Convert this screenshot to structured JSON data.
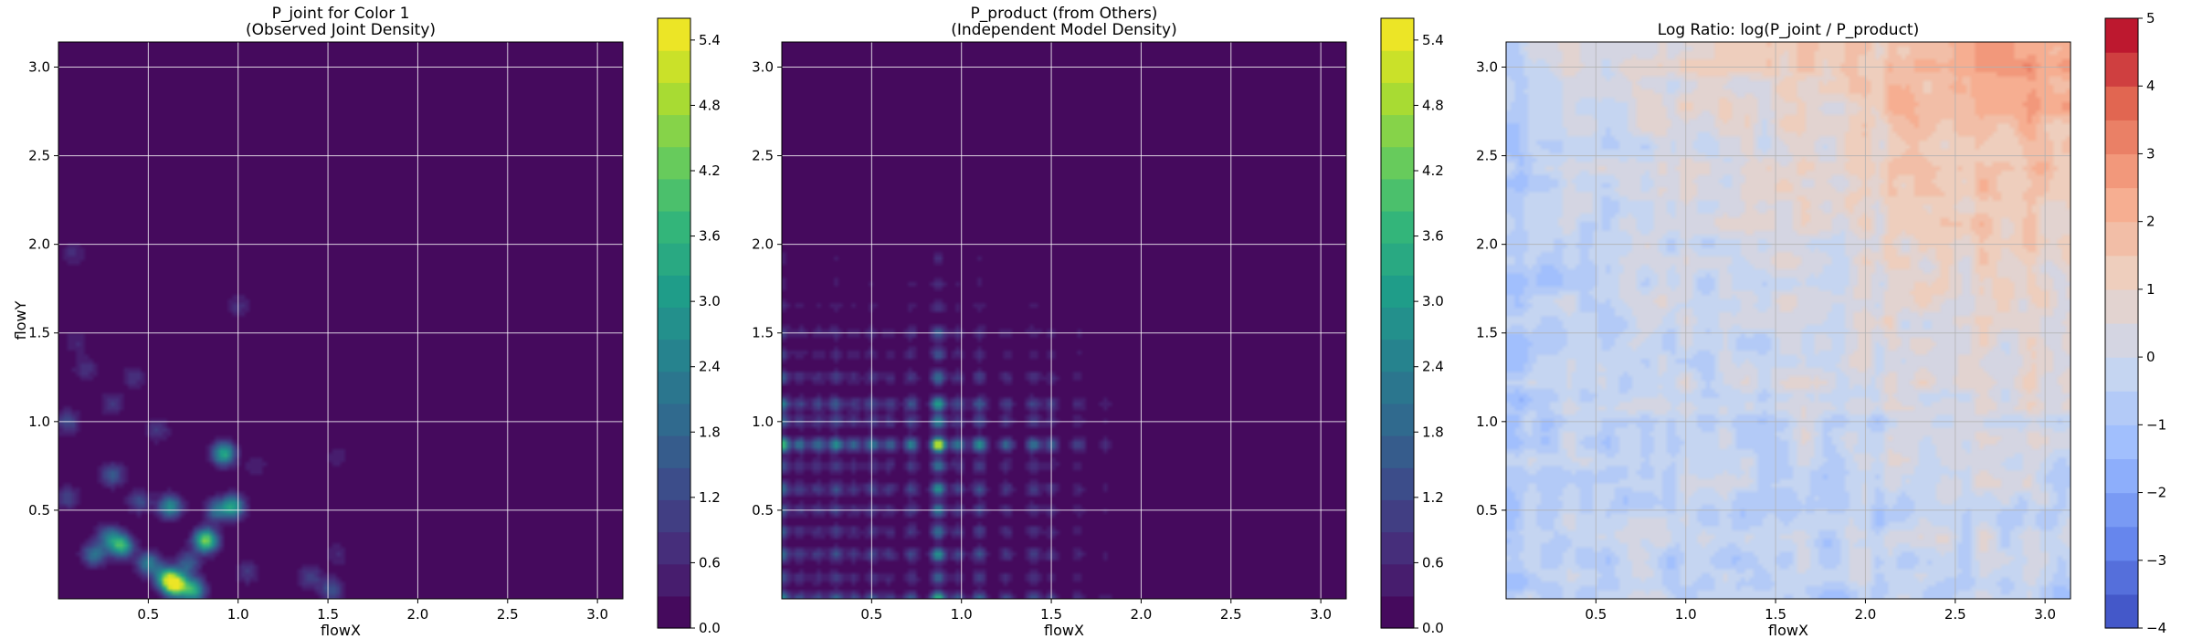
{
  "chart_data": [
    {
      "type": "heatmap",
      "title_lines": [
        "P_joint for Color 1",
        "(Observed Joint Density)"
      ],
      "xlabel": "flowX",
      "ylabel": "flowY",
      "xlim": [
        0,
        3.14159
      ],
      "ylim": [
        0,
        3.14159
      ],
      "xticks": [
        "0.5",
        "1.0",
        "1.5",
        "2.0",
        "2.5",
        "3.0"
      ],
      "yticks": [
        "0.5",
        "1.0",
        "1.5",
        "2.0",
        "2.5",
        "3.0"
      ],
      "colormap": "viridis",
      "grid": true,
      "colorbar": {
        "vmin": 0.0,
        "vmax": 5.6,
        "ticks": [
          "0.0",
          "0.6",
          "1.2",
          "1.8",
          "2.4",
          "3.0",
          "3.6",
          "4.2",
          "4.8",
          "5.4"
        ]
      },
      "peaks": [
        {
          "x": 0.05,
          "y": 0.57,
          "value": 1.1
        },
        {
          "x": 0.05,
          "y": 1.0,
          "value": 1.3
        },
        {
          "x": 0.1,
          "y": 1.45,
          "value": 0.6
        },
        {
          "x": 0.15,
          "y": 1.3,
          "value": 0.8
        },
        {
          "x": 0.08,
          "y": 1.95,
          "value": 0.7
        },
        {
          "x": 0.2,
          "y": 0.25,
          "value": 2.2
        },
        {
          "x": 0.28,
          "y": 0.35,
          "value": 2.0
        },
        {
          "x": 0.3,
          "y": 0.7,
          "value": 1.6
        },
        {
          "x": 0.3,
          "y": 1.1,
          "value": 0.9
        },
        {
          "x": 0.35,
          "y": 0.3,
          "value": 3.6
        },
        {
          "x": 0.45,
          "y": 0.55,
          "value": 1.3
        },
        {
          "x": 0.42,
          "y": 1.25,
          "value": 0.8
        },
        {
          "x": 0.5,
          "y": 0.2,
          "value": 2.4
        },
        {
          "x": 0.55,
          "y": 0.95,
          "value": 0.9
        },
        {
          "x": 0.6,
          "y": 0.12,
          "value": 3.2
        },
        {
          "x": 0.62,
          "y": 0.52,
          "value": 2.8
        },
        {
          "x": 0.65,
          "y": 0.08,
          "value": 5.5
        },
        {
          "x": 0.72,
          "y": 0.2,
          "value": 1.7
        },
        {
          "x": 0.75,
          "y": 0.05,
          "value": 3.4
        },
        {
          "x": 0.82,
          "y": 0.33,
          "value": 4.6
        },
        {
          "x": 0.88,
          "y": 0.5,
          "value": 1.9
        },
        {
          "x": 0.92,
          "y": 0.82,
          "value": 3.4
        },
        {
          "x": 0.97,
          "y": 0.52,
          "value": 3.1
        },
        {
          "x": 1.05,
          "y": 0.15,
          "value": 0.9
        },
        {
          "x": 1.0,
          "y": 1.65,
          "value": 0.7
        },
        {
          "x": 1.1,
          "y": 0.75,
          "value": 0.5
        },
        {
          "x": 1.4,
          "y": 0.12,
          "value": 1.1
        },
        {
          "x": 1.52,
          "y": 0.05,
          "value": 1.5
        },
        {
          "x": 1.55,
          "y": 0.25,
          "value": 0.6
        },
        {
          "x": 1.55,
          "y": 0.8,
          "value": 0.5
        }
      ]
    },
    {
      "type": "heatmap",
      "title_lines": [
        "P_product (from Others)",
        "(Independent Model Density)"
      ],
      "xlabel": "flowX",
      "ylabel": "",
      "xlim": [
        0,
        3.14159
      ],
      "ylim": [
        0,
        3.14159
      ],
      "xticks": [
        "0.5",
        "1.0",
        "1.5",
        "2.0",
        "2.5",
        "3.0"
      ],
      "yticks": [
        "0.5",
        "1.0",
        "1.5",
        "2.0",
        "2.5",
        "3.0"
      ],
      "colormap": "viridis",
      "grid": true,
      "colorbar": {
        "vmin": 0.0,
        "vmax": 5.6,
        "ticks": [
          "0.0",
          "0.6",
          "1.2",
          "1.8",
          "2.4",
          "3.0",
          "3.6",
          "4.2",
          "4.8",
          "5.4"
        ]
      },
      "x_marginal": [
        {
          "x": 0.0,
          "w": 1.8
        },
        {
          "x": 0.1,
          "w": 0.9
        },
        {
          "x": 0.2,
          "w": 0.9
        },
        {
          "x": 0.3,
          "w": 1.2
        },
        {
          "x": 0.4,
          "w": 0.8
        },
        {
          "x": 0.5,
          "w": 1.0
        },
        {
          "x": 0.6,
          "w": 0.8
        },
        {
          "x": 0.72,
          "w": 1.1
        },
        {
          "x": 0.87,
          "w": 2.4
        },
        {
          "x": 0.98,
          "w": 1.0
        },
        {
          "x": 1.1,
          "w": 1.2
        },
        {
          "x": 1.25,
          "w": 0.8
        },
        {
          "x": 1.4,
          "w": 0.9
        },
        {
          "x": 1.5,
          "w": 0.7
        },
        {
          "x": 1.65,
          "w": 0.5
        },
        {
          "x": 1.8,
          "w": 0.3
        },
        {
          "x": 2.1,
          "w": 0.1
        }
      ],
      "y_marginal": [
        {
          "y": 0.0,
          "w": 1.6
        },
        {
          "y": 0.12,
          "w": 0.8
        },
        {
          "y": 0.25,
          "w": 1.2
        },
        {
          "y": 0.38,
          "w": 0.9
        },
        {
          "y": 0.5,
          "w": 1.0
        },
        {
          "y": 0.62,
          "w": 1.2
        },
        {
          "y": 0.75,
          "w": 0.9
        },
        {
          "y": 0.87,
          "w": 2.4
        },
        {
          "y": 1.0,
          "w": 1.1
        },
        {
          "y": 1.1,
          "w": 1.4
        },
        {
          "y": 1.25,
          "w": 0.9
        },
        {
          "y": 1.38,
          "w": 0.6
        },
        {
          "y": 1.5,
          "w": 0.7
        },
        {
          "y": 1.65,
          "w": 0.35
        },
        {
          "y": 1.78,
          "w": 0.3
        },
        {
          "y": 1.92,
          "w": 0.25
        },
        {
          "y": 2.35,
          "w": 0.05
        }
      ]
    },
    {
      "type": "heatmap",
      "title_lines": [
        "Log Ratio: log(P_joint / P_product)"
      ],
      "xlabel": "flowX",
      "ylabel": "",
      "xlim": [
        0,
        3.14159
      ],
      "ylim": [
        0,
        3.14159
      ],
      "xticks": [
        "0.5",
        "1.0",
        "1.5",
        "2.0",
        "2.5",
        "3.0"
      ],
      "yticks": [
        "0.5",
        "1.0",
        "1.5",
        "2.0",
        "2.5",
        "3.0"
      ],
      "colormap": "coolwarm",
      "grid": true,
      "colorbar": {
        "vmin": -4,
        "vmax": 5,
        "ticks": [
          "−4",
          "−3",
          "−2",
          "−1",
          "0",
          "1",
          "2",
          "3",
          "4",
          "5"
        ]
      }
    }
  ],
  "colors": {
    "viridis": [
      "#440154",
      "#482878",
      "#3e4989",
      "#31688e",
      "#26828e",
      "#1f9e89",
      "#35b779",
      "#6ece58",
      "#b5de2b",
      "#fde725"
    ],
    "coolwarm": [
      "#3b4cc0",
      "#6788ee",
      "#9abbff",
      "#c9d7f0",
      "#edd1c2",
      "#f7a889",
      "#e26952",
      "#b40426"
    ],
    "grid": "#ffffff",
    "grid_on_diverging": "#b0b0b0"
  }
}
